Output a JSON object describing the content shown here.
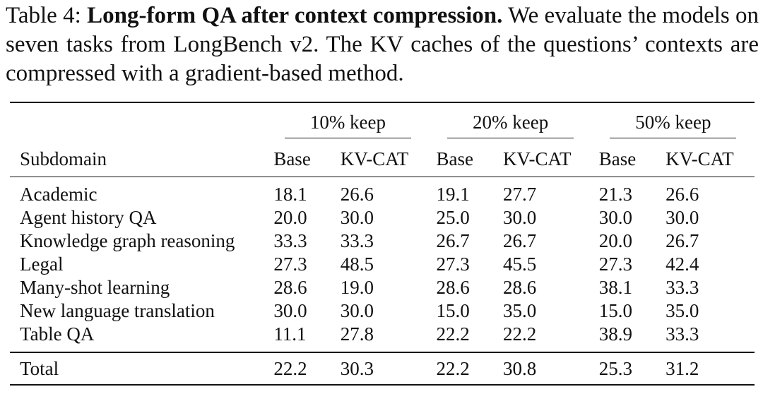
{
  "caption": {
    "label": "Table 4:",
    "title": "Long-form QA after context compression.",
    "text": "We evaluate the models on seven tasks from LongBench v2. The KV caches of the questions’ contexts are compressed with a gradient-based method."
  },
  "table": {
    "row_header": "Subdomain",
    "groups": [
      "10% keep",
      "20% keep",
      "50% keep"
    ],
    "subcolumns": [
      "Base",
      "KV-CAT"
    ],
    "rows": [
      {
        "label": "Academic",
        "cells": [
          {
            "v": "18.1",
            "b": false
          },
          {
            "v": "26.6",
            "b": true
          },
          {
            "v": "19.1",
            "b": false
          },
          {
            "v": "27.7",
            "b": true
          },
          {
            "v": "21.3",
            "b": false
          },
          {
            "v": "26.6",
            "b": true
          }
        ]
      },
      {
        "label": "Agent history QA",
        "cells": [
          {
            "v": "20.0",
            "b": false
          },
          {
            "v": "30.0",
            "b": true
          },
          {
            "v": "25.0",
            "b": false
          },
          {
            "v": "30.0",
            "b": true
          },
          {
            "v": "30.0",
            "b": true
          },
          {
            "v": "30.0",
            "b": true
          }
        ]
      },
      {
        "label": "Knowledge graph reasoning",
        "cells": [
          {
            "v": "33.3",
            "b": true
          },
          {
            "v": "33.3",
            "b": true
          },
          {
            "v": "26.7",
            "b": true
          },
          {
            "v": "26.7",
            "b": true
          },
          {
            "v": "20.0",
            "b": false
          },
          {
            "v": "26.7",
            "b": true
          }
        ]
      },
      {
        "label": "Legal",
        "cells": [
          {
            "v": "27.3",
            "b": false
          },
          {
            "v": "48.5",
            "b": true
          },
          {
            "v": "27.3",
            "b": false
          },
          {
            "v": "45.5",
            "b": true
          },
          {
            "v": "27.3",
            "b": false
          },
          {
            "v": "42.4",
            "b": true
          }
        ]
      },
      {
        "label": "Many-shot learning",
        "cells": [
          {
            "v": "28.6",
            "b": true
          },
          {
            "v": "19.0",
            "b": false
          },
          {
            "v": "28.6",
            "b": true
          },
          {
            "v": "28.6",
            "b": true
          },
          {
            "v": "38.1",
            "b": true
          },
          {
            "v": "33.3",
            "b": false
          }
        ]
      },
      {
        "label": "New language translation",
        "cells": [
          {
            "v": "30.0",
            "b": true
          },
          {
            "v": "30.0",
            "b": true
          },
          {
            "v": "15.0",
            "b": false
          },
          {
            "v": "35.0",
            "b": true
          },
          {
            "v": "15.0",
            "b": false
          },
          {
            "v": "35.0",
            "b": true
          }
        ]
      },
      {
        "label": "Table QA",
        "cells": [
          {
            "v": "11.1",
            "b": false
          },
          {
            "v": "27.8",
            "b": true
          },
          {
            "v": "22.2",
            "b": true
          },
          {
            "v": "22.2",
            "b": true
          },
          {
            "v": "38.9",
            "b": true
          },
          {
            "v": "33.3",
            "b": false
          }
        ]
      }
    ],
    "total": {
      "label": "Total",
      "cells": [
        {
          "v": "22.2",
          "b": false
        },
        {
          "v": "30.3",
          "b": true
        },
        {
          "v": "22.2",
          "b": false
        },
        {
          "v": "30.8",
          "b": true
        },
        {
          "v": "25.3",
          "b": false
        },
        {
          "v": "31.2",
          "b": true
        }
      ]
    }
  }
}
